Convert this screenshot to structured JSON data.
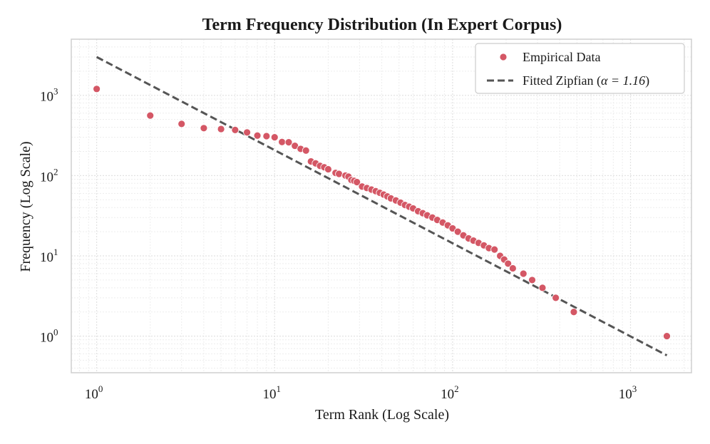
{
  "chart_data": {
    "type": "scatter",
    "title": "Term Frequency Distribution (In Expert Corpus)",
    "xlabel": "Term Rank (Log Scale)",
    "ylabel": "Frequency (Log Scale)",
    "xscale": "log",
    "yscale": "log",
    "xlim": [
      0.72,
      2200
    ],
    "ylim": [
      0.35,
      5000
    ],
    "grid": true,
    "legend_position": "top-right",
    "x_ticks": [
      {
        "base": "10",
        "exp": "0"
      },
      {
        "base": "10",
        "exp": "1"
      },
      {
        "base": "10",
        "exp": "2"
      },
      {
        "base": "10",
        "exp": "3"
      }
    ],
    "y_ticks": [
      {
        "base": "10",
        "exp": "0"
      },
      {
        "base": "10",
        "exp": "1"
      },
      {
        "base": "10",
        "exp": "2"
      },
      {
        "base": "10",
        "exp": "3"
      }
    ],
    "series": [
      {
        "name": "Empirical Data",
        "kind": "scatter",
        "color": "#d45765",
        "points": [
          [
            1,
            1200
          ],
          [
            2,
            560
          ],
          [
            3,
            440
          ],
          [
            4,
            390
          ],
          [
            5,
            380
          ],
          [
            6,
            370
          ],
          [
            7,
            345
          ],
          [
            8,
            315
          ],
          [
            9,
            310
          ],
          [
            10,
            300
          ],
          [
            11,
            262
          ],
          [
            12,
            260
          ],
          [
            13,
            235
          ],
          [
            14,
            215
          ],
          [
            15,
            205
          ],
          [
            16,
            150
          ],
          [
            17,
            142
          ],
          [
            18,
            132
          ],
          [
            19,
            127
          ],
          [
            20,
            120
          ],
          [
            22,
            108
          ],
          [
            23,
            105
          ],
          [
            25,
            100
          ],
          [
            26,
            97
          ],
          [
            27,
            88
          ],
          [
            28,
            86
          ],
          [
            29,
            83
          ],
          [
            31,
            73
          ],
          [
            33,
            70
          ],
          [
            35,
            67
          ],
          [
            37,
            64
          ],
          [
            39,
            61
          ],
          [
            41,
            58
          ],
          [
            43,
            55
          ],
          [
            45,
            52
          ],
          [
            48,
            49
          ],
          [
            51,
            46
          ],
          [
            54,
            43
          ],
          [
            57,
            41
          ],
          [
            60,
            39
          ],
          [
            64,
            36
          ],
          [
            68,
            34
          ],
          [
            72,
            32
          ],
          [
            77,
            30
          ],
          [
            82,
            28
          ],
          [
            88,
            26
          ],
          [
            94,
            24
          ],
          [
            100,
            22
          ],
          [
            107,
            20
          ],
          [
            115,
            18
          ],
          [
            123,
            16.5
          ],
          [
            131,
            15.5
          ],
          [
            140,
            14.5
          ],
          [
            150,
            13.5
          ],
          [
            160,
            12.5
          ],
          [
            172,
            12
          ],
          [
            185,
            10
          ],
          [
            195,
            9
          ],
          [
            205,
            8
          ],
          [
            218,
            7
          ],
          [
            250,
            6
          ],
          [
            280,
            5
          ],
          [
            320,
            4
          ],
          [
            380,
            3
          ],
          [
            480,
            2
          ],
          [
            1600,
            1
          ]
        ]
      },
      {
        "name": "Fitted Zipfian (α = 1.16)",
        "legend_prefix": "Fitted Zipfian (",
        "legend_math": "α = 1.16",
        "legend_suffix": ")",
        "kind": "line",
        "style": "dashed",
        "color": "#555555",
        "alpha": 1.16,
        "C": 3000,
        "x_range": [
          1,
          1600
        ]
      }
    ]
  }
}
